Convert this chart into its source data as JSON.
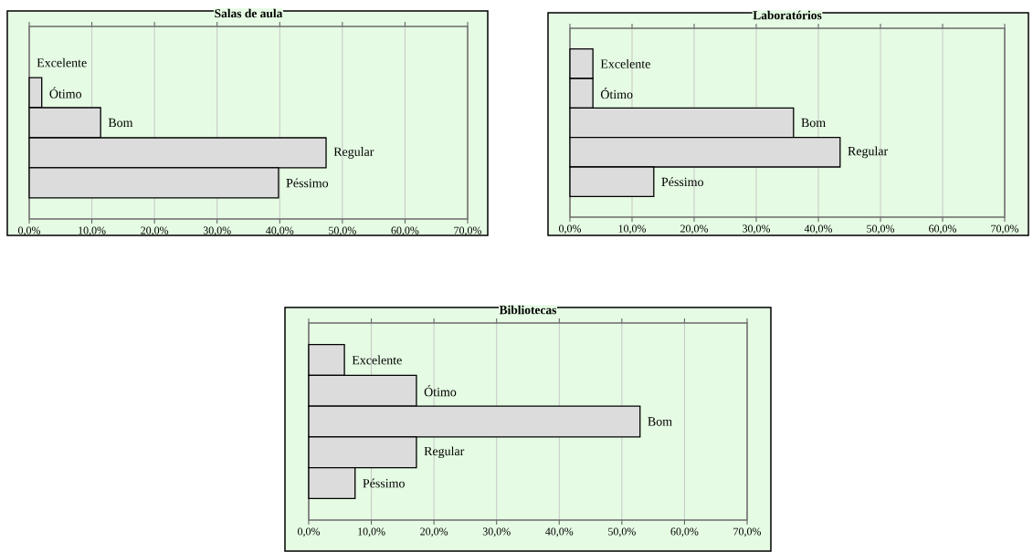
{
  "chart_data": [
    {
      "type": "bar",
      "orientation": "horizontal",
      "title": "Salas de aula",
      "categories": [
        "Excelente",
        "Ótimo",
        "Bom",
        "Regular",
        "Péssimo"
      ],
      "values": [
        0,
        2.0,
        11.4,
        47.4,
        39.8
      ],
      "color": "#dcdcdc",
      "xlim": [
        0,
        70
      ],
      "xticks": [
        {
          "value": 0,
          "label": "0,0%"
        },
        {
          "value": 10,
          "label": "10,0%"
        },
        {
          "value": 20,
          "label": "20,0%"
        },
        {
          "value": 30,
          "label": "30,0%"
        },
        {
          "value": 40,
          "label": "40,0%"
        },
        {
          "value": 50,
          "label": "50,0%"
        },
        {
          "value": 60,
          "label": "60,0%"
        },
        {
          "value": 70,
          "label": "70,0%"
        }
      ],
      "grid": "x"
    },
    {
      "type": "bar",
      "orientation": "horizontal",
      "title": "Laboratórios",
      "categories": [
        "Excelente",
        "Ótimo",
        "Bom",
        "Regular",
        "Péssimo"
      ],
      "values": [
        3.7,
        3.7,
        36.0,
        43.5,
        13.5
      ],
      "color": "#dcdcdc",
      "xlim": [
        0,
        70
      ],
      "xticks": [
        {
          "value": 0,
          "label": "0,0%"
        },
        {
          "value": 10,
          "label": "10,0%"
        },
        {
          "value": 20,
          "label": "20,0%"
        },
        {
          "value": 30,
          "label": "30,0%"
        },
        {
          "value": 40,
          "label": "40,0%"
        },
        {
          "value": 50,
          "label": "50,0%"
        },
        {
          "value": 60,
          "label": "60,0%"
        },
        {
          "value": 70,
          "label": "70,0%"
        }
      ],
      "grid": "x"
    },
    {
      "type": "bar",
      "orientation": "horizontal",
      "title": "Bibliotecas",
      "categories": [
        "Excelente",
        "Ótimo",
        "Bom",
        "Regular",
        "Péssimo"
      ],
      "values": [
        5.7,
        17.2,
        52.9,
        17.2,
        7.4
      ],
      "color": "#dcdcdc",
      "xlim": [
        0,
        70
      ],
      "xticks": [
        {
          "value": 0,
          "label": "0,0%"
        },
        {
          "value": 10,
          "label": "10,0%"
        },
        {
          "value": 20,
          "label": "20,0%"
        },
        {
          "value": 30,
          "label": "30,0%"
        },
        {
          "value": 40,
          "label": "40,0%"
        },
        {
          "value": 50,
          "label": "50,0%"
        },
        {
          "value": 60,
          "label": "60,0%"
        },
        {
          "value": 70,
          "label": "70,0%"
        }
      ],
      "grid": "x"
    }
  ]
}
